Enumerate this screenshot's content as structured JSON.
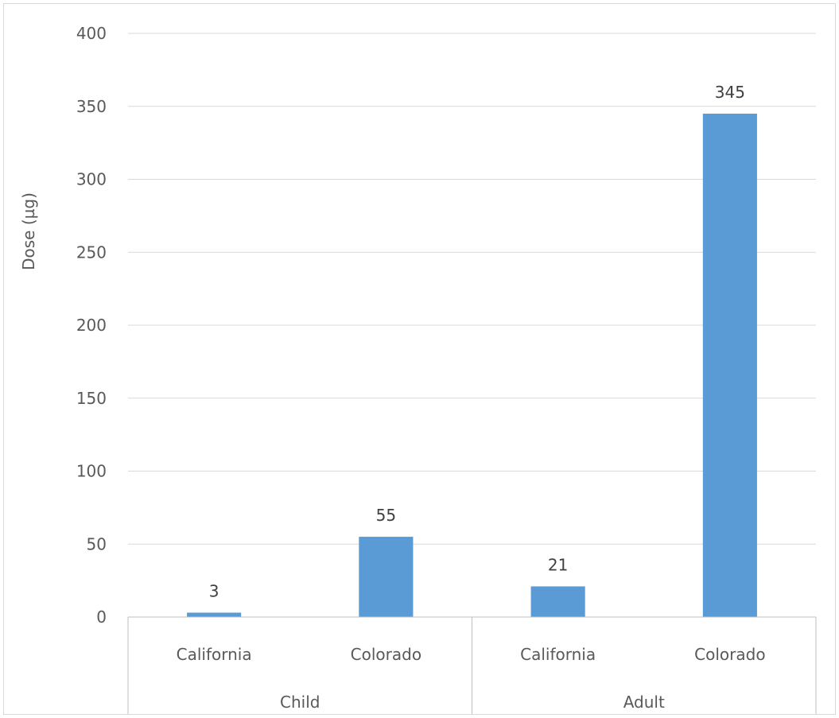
{
  "chart_data": {
    "type": "bar",
    "title": "",
    "ylabel": "Dose (µg)",
    "xlabel": "",
    "ylim": [
      0,
      400
    ],
    "yticks": [
      0,
      50,
      100,
      150,
      200,
      250,
      300,
      350,
      400
    ],
    "grid": true,
    "legend": "none",
    "bar_color": "#5b9bd5",
    "groups": [
      {
        "label": "Child",
        "categories": [
          "California",
          "Colorado"
        ],
        "values": [
          3,
          55
        ]
      },
      {
        "label": "Adult",
        "categories": [
          "California",
          "Colorado"
        ],
        "values": [
          21,
          345
        ]
      }
    ]
  }
}
